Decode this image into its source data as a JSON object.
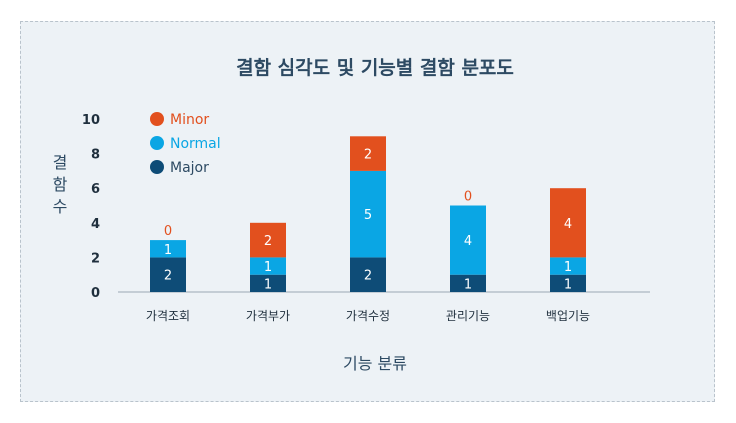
{
  "chart_data": {
    "type": "bar",
    "stacked": true,
    "title": "결함 심각도 및 기능별 결함 분포도",
    "xlabel": "기능 분류",
    "ylabel": "결함수",
    "ylim": [
      0,
      10
    ],
    "yticks": [
      "0",
      "2",
      "4",
      "6",
      "8",
      "10"
    ],
    "grid": false,
    "legend_position": "top-left",
    "categories": [
      "가격조회",
      "가격부가",
      "가격수정",
      "관리기능",
      "백업기능"
    ],
    "series": [
      {
        "name": "Major",
        "color": "#0e4c77",
        "values": [
          2,
          1,
          2,
          1,
          1
        ]
      },
      {
        "name": "Normal",
        "color": "#0aa6e4",
        "values": [
          1,
          1,
          5,
          4,
          1
        ]
      },
      {
        "name": "Minor",
        "color": "#e2501e",
        "values": [
          0,
          2,
          2,
          0,
          4
        ]
      }
    ],
    "legend_order": [
      "Minor",
      "Normal",
      "Major"
    ]
  }
}
